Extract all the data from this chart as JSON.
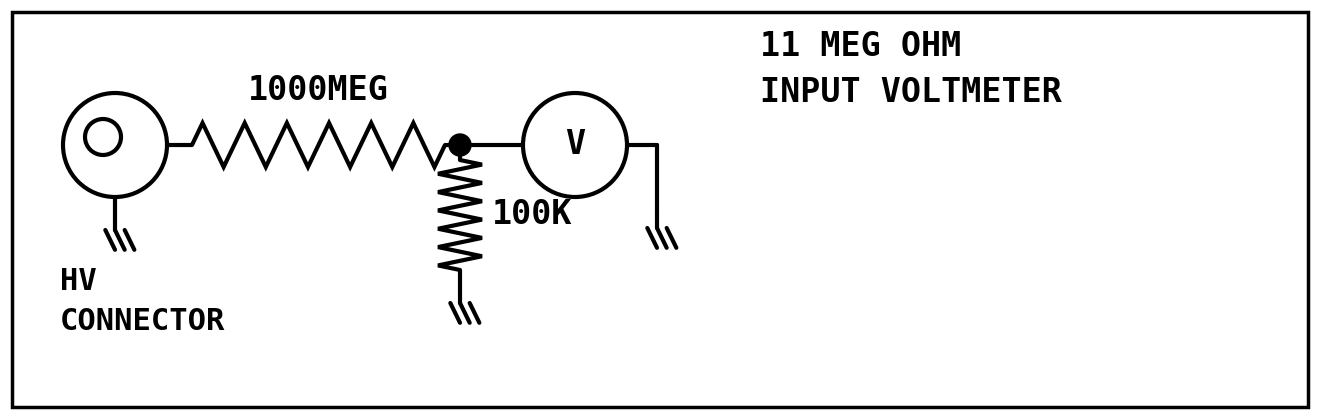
{
  "bg_color": "#ffffff",
  "line_color": "#000000",
  "label_1000meg": "1000MEG",
  "label_100k": "100K",
  "label_hv": "HV\nCONNECTOR",
  "label_voltmeter": "11 MEG OHM\nINPUT VOLTMETER",
  "font_family": "monospace",
  "font_size_large": 24,
  "font_size_label": 22
}
